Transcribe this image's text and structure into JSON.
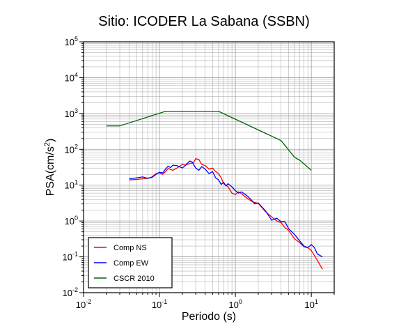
{
  "chart_data": {
    "type": "line",
    "title": "Sitio: ICODER La Sabana (SSBN)",
    "xlabel": "Periodo (s)",
    "ylabel": {
      "prefix": "PSA(cm/s",
      "sup": "2",
      "suffix": ")"
    },
    "x_scale": "log",
    "y_scale": "log",
    "xlim": [
      0.01,
      20
    ],
    "ylim": [
      0.01,
      100000
    ],
    "grid": true,
    "legend_position": "bottom-left",
    "x_ticks": [
      {
        "base": "10",
        "exp": "-2",
        "value": 0.01
      },
      {
        "base": "10",
        "exp": "-1",
        "value": 0.1
      },
      {
        "base": "10",
        "exp": "0",
        "value": 1
      },
      {
        "base": "10",
        "exp": "1",
        "value": 10
      }
    ],
    "y_ticks": [
      {
        "base": "10",
        "exp": "-2",
        "value": 0.01
      },
      {
        "base": "10",
        "exp": "-1",
        "value": 0.1
      },
      {
        "base": "10",
        "exp": "0",
        "value": 1
      },
      {
        "base": "10",
        "exp": "1",
        "value": 10
      },
      {
        "base": "10",
        "exp": "2",
        "value": 100
      },
      {
        "base": "10",
        "exp": "3",
        "value": 1000
      },
      {
        "base": "10",
        "exp": "4",
        "value": 10000
      },
      {
        "base": "10",
        "exp": "5",
        "value": 100000
      }
    ],
    "series": [
      {
        "name": "Comp NS",
        "color": "#ff0000",
        "points": [
          [
            0.04,
            14
          ],
          [
            0.05,
            14.5
          ],
          [
            0.06,
            15
          ],
          [
            0.07,
            15.5
          ],
          [
            0.08,
            17
          ],
          [
            0.09,
            21
          ],
          [
            0.1,
            22
          ],
          [
            0.11,
            20
          ],
          [
            0.12,
            24
          ],
          [
            0.13,
            29
          ],
          [
            0.15,
            26
          ],
          [
            0.17,
            30
          ],
          [
            0.2,
            38
          ],
          [
            0.22,
            36
          ],
          [
            0.25,
            40
          ],
          [
            0.28,
            42
          ],
          [
            0.3,
            55
          ],
          [
            0.33,
            52
          ],
          [
            0.36,
            38
          ],
          [
            0.4,
            35
          ],
          [
            0.45,
            28
          ],
          [
            0.5,
            30
          ],
          [
            0.55,
            24
          ],
          [
            0.6,
            21
          ],
          [
            0.65,
            16
          ],
          [
            0.7,
            11
          ],
          [
            0.75,
            10
          ],
          [
            0.8,
            9
          ],
          [
            0.9,
            6
          ],
          [
            1.0,
            5.5
          ],
          [
            1.1,
            6.5
          ],
          [
            1.2,
            5.8
          ],
          [
            1.3,
            5
          ],
          [
            1.5,
            4
          ],
          [
            1.7,
            3.4
          ],
          [
            2.0,
            3.1
          ],
          [
            2.5,
            1.8
          ],
          [
            3.0,
            1.3
          ],
          [
            3.5,
            1.0
          ],
          [
            4.0,
            0.9
          ],
          [
            4.5,
            0.65
          ],
          [
            5.0,
            0.55
          ],
          [
            6.0,
            0.32
          ],
          [
            7.0,
            0.25
          ],
          [
            8.0,
            0.19
          ],
          [
            9.0,
            0.18
          ],
          [
            10.0,
            0.15
          ],
          [
            12.0,
            0.08
          ],
          [
            14.0,
            0.045
          ]
        ]
      },
      {
        "name": "Comp EW",
        "color": "#0000ff",
        "points": [
          [
            0.04,
            15
          ],
          [
            0.05,
            16
          ],
          [
            0.06,
            17
          ],
          [
            0.07,
            15.5
          ],
          [
            0.08,
            16.5
          ],
          [
            0.09,
            20
          ],
          [
            0.1,
            23
          ],
          [
            0.11,
            22
          ],
          [
            0.12,
            28
          ],
          [
            0.13,
            34
          ],
          [
            0.14,
            31
          ],
          [
            0.15,
            36
          ],
          [
            0.17,
            35
          ],
          [
            0.2,
            30
          ],
          [
            0.22,
            36
          ],
          [
            0.25,
            47
          ],
          [
            0.27,
            44
          ],
          [
            0.3,
            30
          ],
          [
            0.33,
            26
          ],
          [
            0.36,
            33
          ],
          [
            0.4,
            28
          ],
          [
            0.45,
            21
          ],
          [
            0.5,
            24
          ],
          [
            0.55,
            16
          ],
          [
            0.6,
            14
          ],
          [
            0.65,
            10.5
          ],
          [
            0.7,
            12
          ],
          [
            0.75,
            9.5
          ],
          [
            0.8,
            11
          ],
          [
            0.9,
            9
          ],
          [
            1.0,
            7
          ],
          [
            1.1,
            6
          ],
          [
            1.2,
            6.5
          ],
          [
            1.4,
            5.2
          ],
          [
            1.6,
            4
          ],
          [
            1.8,
            3
          ],
          [
            2.0,
            3.2
          ],
          [
            2.5,
            1.9
          ],
          [
            3.0,
            1.05
          ],
          [
            3.5,
            1.2
          ],
          [
            4.0,
            0.95
          ],
          [
            4.5,
            0.95
          ],
          [
            5.0,
            0.62
          ],
          [
            6.0,
            0.42
          ],
          [
            7.0,
            0.28
          ],
          [
            8.0,
            0.2
          ],
          [
            9.0,
            0.18
          ],
          [
            10.0,
            0.22
          ],
          [
            11.0,
            0.18
          ],
          [
            12.0,
            0.12
          ],
          [
            14.0,
            0.1
          ]
        ]
      },
      {
        "name": "CSCR 2010",
        "color": "#006400",
        "points": [
          [
            0.02,
            450
          ],
          [
            0.03,
            450
          ],
          [
            0.12,
            1150
          ],
          [
            0.6,
            1150
          ],
          [
            4.0,
            175
          ],
          [
            6.0,
            60
          ],
          [
            7.0,
            50
          ],
          [
            10.0,
            26
          ]
        ]
      }
    ]
  }
}
